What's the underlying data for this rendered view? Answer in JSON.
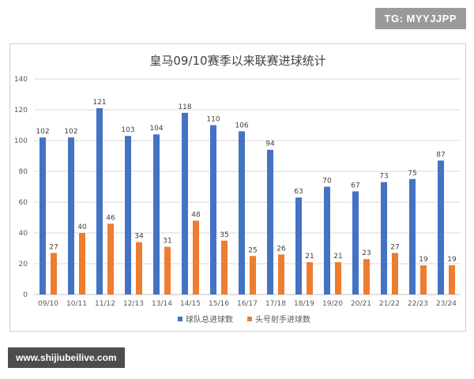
{
  "watermark_top": "TG: MYYJJPP",
  "watermark_bottom": "www.shijiubeilive.com",
  "colors": {
    "series1": "#4472c4",
    "series2": "#ed7d31",
    "grid": "#d9d9d9",
    "text": "#595959"
  },
  "chart_data": {
    "type": "bar",
    "title": "皇马09/10赛季以来联赛进球统计",
    "categories": [
      "09/10",
      "10/11",
      "11/12",
      "12/13",
      "13/14",
      "14/15",
      "15/16",
      "16/17",
      "17/18",
      "18/19",
      "19/20",
      "20/21",
      "21/22",
      "22/23",
      "23/24"
    ],
    "series": [
      {
        "name": "球队总进球数",
        "values": [
          102,
          102,
          121,
          103,
          104,
          118,
          110,
          106,
          94,
          63,
          70,
          67,
          73,
          75,
          87
        ]
      },
      {
        "name": "头号射手进球数",
        "values": [
          27,
          40,
          46,
          34,
          31,
          48,
          35,
          25,
          26,
          21,
          21,
          23,
          27,
          19,
          19
        ]
      }
    ],
    "ylim": [
      0,
      140
    ],
    "yticks": [
      0,
      20,
      40,
      60,
      80,
      100,
      120,
      140
    ],
    "grid": true,
    "legend_position": "bottom"
  }
}
